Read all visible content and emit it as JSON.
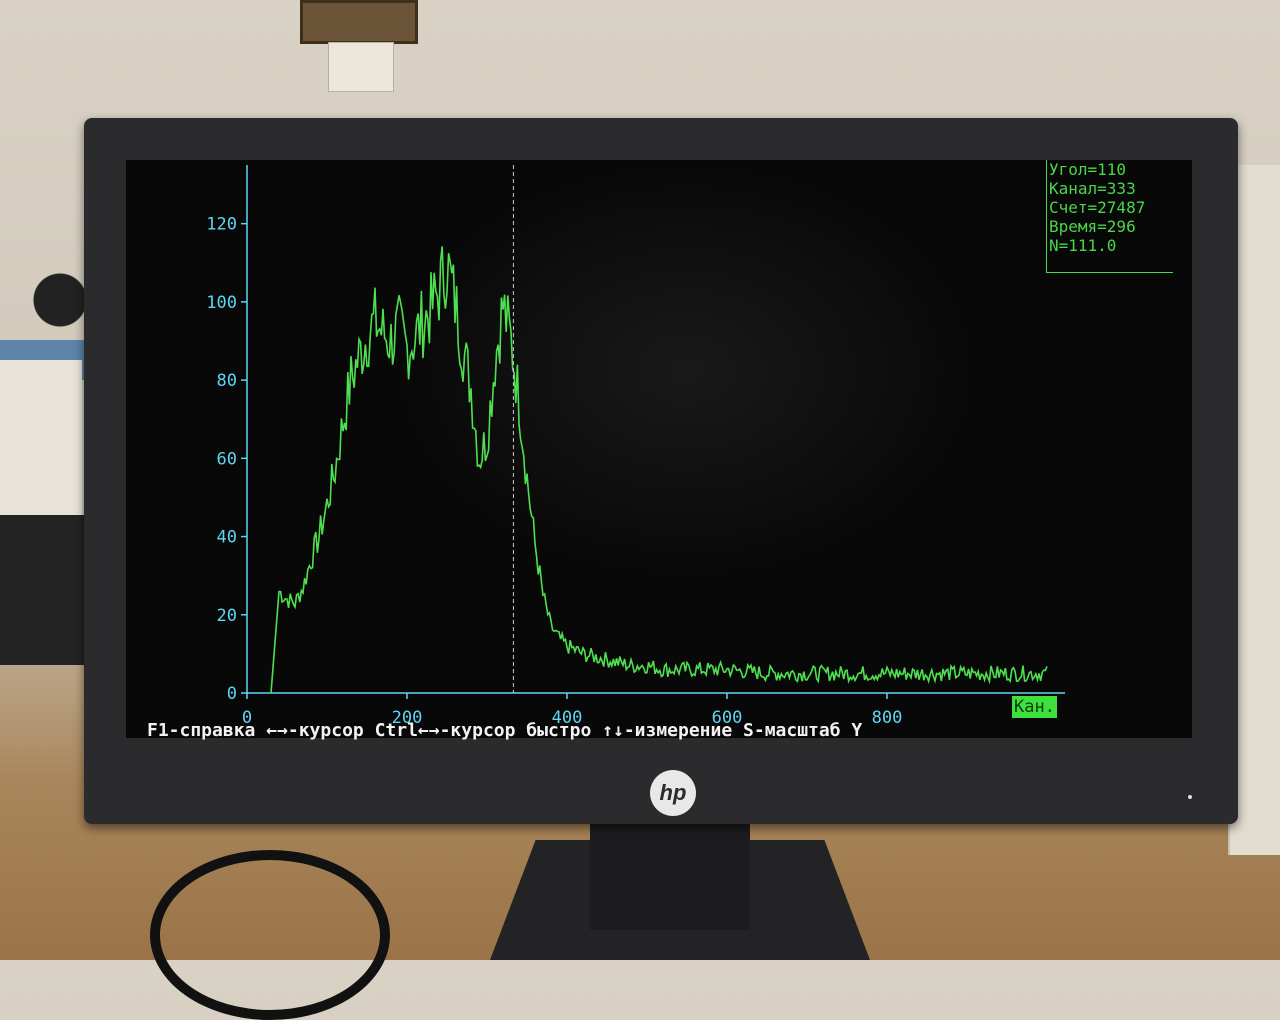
{
  "chart_data": {
    "type": "line",
    "xlabel": "Кан.",
    "ylabel": "",
    "xlim": [
      0,
      1000
    ],
    "ylim": [
      0,
      135
    ],
    "x_ticks": [
      "0",
      "200",
      "400",
      "600",
      "800"
    ],
    "y_ticks": [
      "0",
      "20",
      "40",
      "60",
      "80",
      "100",
      "120"
    ],
    "cursor_channel": 333,
    "series": [
      {
        "x": [
          30,
          40,
          50,
          60,
          70,
          80,
          90,
          100,
          110,
          120,
          130,
          140,
          150,
          160,
          170,
          180,
          190,
          200,
          210,
          220,
          230,
          240,
          250,
          260,
          270,
          280,
          290,
          300,
          310,
          320,
          330,
          340,
          350,
          360,
          370,
          380,
          390,
          400,
          420,
          440,
          460,
          480,
          500,
          520,
          560,
          600,
          650,
          700,
          750,
          800,
          850,
          900,
          950,
          1000
        ],
        "values": [
          0,
          26,
          24,
          23,
          27,
          34,
          40,
          48,
          57,
          69,
          80,
          86,
          91,
          95,
          92,
          90,
          93,
          88,
          91,
          95,
          98,
          103,
          110,
          100,
          88,
          78,
          60,
          65,
          85,
          99,
          90,
          75,
          55,
          38,
          25,
          17,
          14,
          12,
          10,
          9,
          8,
          7,
          7,
          6,
          6,
          6,
          5,
          5,
          5,
          5,
          5,
          5,
          5,
          5
        ]
      }
    ],
    "colors": {
      "trace": "#4fe04f",
      "axes": "#5fd6f0",
      "cursor": "#cccccc"
    }
  },
  "info_panel": {
    "angle": "Угол=110",
    "channel": "Канал=333",
    "count": "Счет=27487",
    "time": "Время=296",
    "n": "N=111.0"
  },
  "help_bar": "F1-справка ←→-курсор Ctrl←→-курсор быстро ↑↓-измерение S-масштаб Y",
  "screen_brand": "hp"
}
